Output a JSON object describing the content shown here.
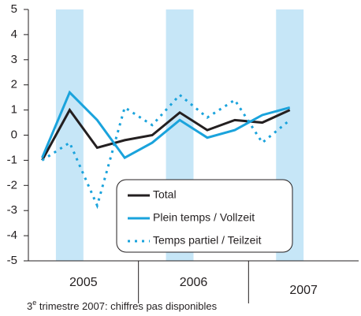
{
  "chart_data": {
    "type": "line",
    "categories": [
      null,
      null,
      null,
      null,
      null,
      null,
      null,
      null,
      null,
      null
    ],
    "years": [
      "2005",
      "2006",
      "2007"
    ],
    "series": [
      {
        "name": "Total",
        "color": "#231f20",
        "dash": false,
        "values": [
          -1.0,
          1.0,
          -0.5,
          -0.2,
          0.0,
          0.9,
          0.2,
          0.6,
          0.5,
          1.0
        ]
      },
      {
        "name": "Plein temps / Vollzeit",
        "color": "#1aa3dc",
        "dash": false,
        "values": [
          -0.9,
          1.7,
          0.6,
          -0.9,
          -0.3,
          0.6,
          -0.1,
          0.2,
          0.8,
          1.1
        ]
      },
      {
        "name": "Temps partiel / Teilzeit",
        "color": "#1aa3dc",
        "dash": true,
        "values": [
          -1.0,
          -0.3,
          -2.8,
          1.1,
          0.4,
          1.6,
          0.7,
          1.4,
          -0.3,
          0.6
        ]
      }
    ],
    "ylim": [
      -5,
      5
    ],
    "yticks": [
      -5,
      -4,
      -3,
      -2,
      -1,
      0,
      1,
      2,
      3,
      4,
      5
    ],
    "band_color": "#c6e6f7",
    "note": {
      "number": "3",
      "sup": "e",
      "text": " trimestre 2007: chiffres pas disponibles"
    }
  }
}
